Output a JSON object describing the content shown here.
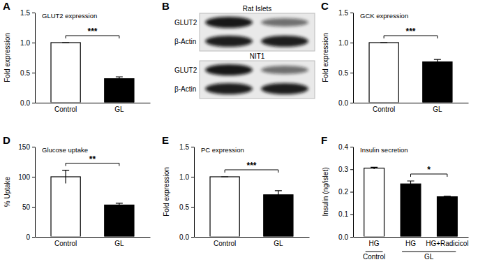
{
  "chart_data": [
    {
      "type": "bar",
      "panel": "A",
      "title": "GLUT2 expression",
      "y_label": "Fold expression",
      "categories": [
        "Control",
        "GL"
      ],
      "values": [
        1.0,
        0.4
      ],
      "errors": [
        0,
        0.03
      ],
      "colors": [
        "#ffffff",
        "#000000"
      ],
      "ylim": [
        0,
        1.5
      ],
      "yticks": [
        {
          "value": 0,
          "label": "0.0"
        },
        {
          "value": 0.5,
          "label": "0.5"
        },
        {
          "value": 1,
          "label": "1.0"
        },
        {
          "value": 1.5,
          "label": "1.5"
        }
      ],
      "annotations": [
        {
          "text": "***",
          "from": 0,
          "to": 1
        }
      ]
    },
    {
      "type": "bar",
      "panel": "C",
      "title": "GCK expression",
      "y_label": "Fold expression",
      "categories": [
        "Control",
        "GL"
      ],
      "values": [
        1.0,
        0.68
      ],
      "errors": [
        0,
        0.04
      ],
      "colors": [
        "#ffffff",
        "#000000"
      ],
      "ylim": [
        0,
        1.5
      ],
      "yticks": [
        {
          "value": 0,
          "label": "0.0"
        },
        {
          "value": 0.5,
          "label": "0.5"
        },
        {
          "value": 1,
          "label": "1.0"
        },
        {
          "value": 1.5,
          "label": "1.5"
        }
      ],
      "annotations": [
        {
          "text": "***",
          "from": 0,
          "to": 1
        }
      ]
    },
    {
      "type": "bar",
      "panel": "D",
      "title": "Glucose uptake",
      "y_label": "% Uptake",
      "categories": [
        "Control",
        "GL"
      ],
      "values": [
        100,
        53
      ],
      "errors": [
        11,
        3
      ],
      "colors": [
        "#ffffff",
        "#000000"
      ],
      "ylim": [
        0,
        150
      ],
      "yticks": [
        0,
        50,
        100,
        150
      ],
      "annotations": [
        {
          "text": "**",
          "from": 0,
          "to": 1
        }
      ]
    },
    {
      "type": "bar",
      "panel": "E",
      "title": "PC expression",
      "y_label": "Fold expression",
      "categories": [
        "Control",
        "GL"
      ],
      "values": [
        1.0,
        0.7
      ],
      "errors": [
        0,
        0.07
      ],
      "colors": [
        "#ffffff",
        "#000000"
      ],
      "ylim": [
        0,
        1.5
      ],
      "yticks": [
        {
          "value": 0,
          "label": "0.0"
        },
        {
          "value": 0.5,
          "label": "0.5"
        },
        {
          "value": 1,
          "label": "1.0"
        },
        {
          "value": 1.5,
          "label": "1.5"
        }
      ],
      "annotations": [
        {
          "text": "***",
          "from": 0,
          "to": 1
        }
      ]
    },
    {
      "type": "bar",
      "panel": "F",
      "title": "Insulin secretion",
      "y_label": "Insulin (ng/islet)",
      "categories": [
        "HG",
        "HG",
        "HG+Radicicol"
      ],
      "values": [
        0.305,
        0.235,
        0.178
      ],
      "errors": [
        0.004,
        0.013,
        0.002
      ],
      "colors": [
        "#ffffff",
        "#000000",
        "#000000"
      ],
      "ylim": [
        0,
        0.4
      ],
      "yticks": [
        {
          "value": 0,
          "label": "0.0"
        },
        {
          "value": 0.1,
          "label": "0.1"
        },
        {
          "value": 0.2,
          "label": "0.2"
        },
        {
          "value": 0.3,
          "label": "0.3"
        },
        {
          "value": 0.4,
          "label": "0.4"
        }
      ],
      "annotations": [
        {
          "text": "*",
          "from": 1,
          "to": 2
        }
      ],
      "groups": [
        {
          "label": "Control",
          "from": 0,
          "to": 0
        },
        {
          "label": "GL",
          "from": 1,
          "to": 2
        }
      ]
    }
  ],
  "blot": {
    "panel": "B",
    "groups": [
      {
        "title": "Rat Islets",
        "rows": [
          {
            "label": "GLUT2"
          },
          {
            "label": "β-Actin"
          }
        ]
      },
      {
        "title": "NIT1",
        "rows": [
          {
            "label": "GLUT2"
          },
          {
            "label": "β-Actin"
          }
        ]
      }
    ]
  }
}
